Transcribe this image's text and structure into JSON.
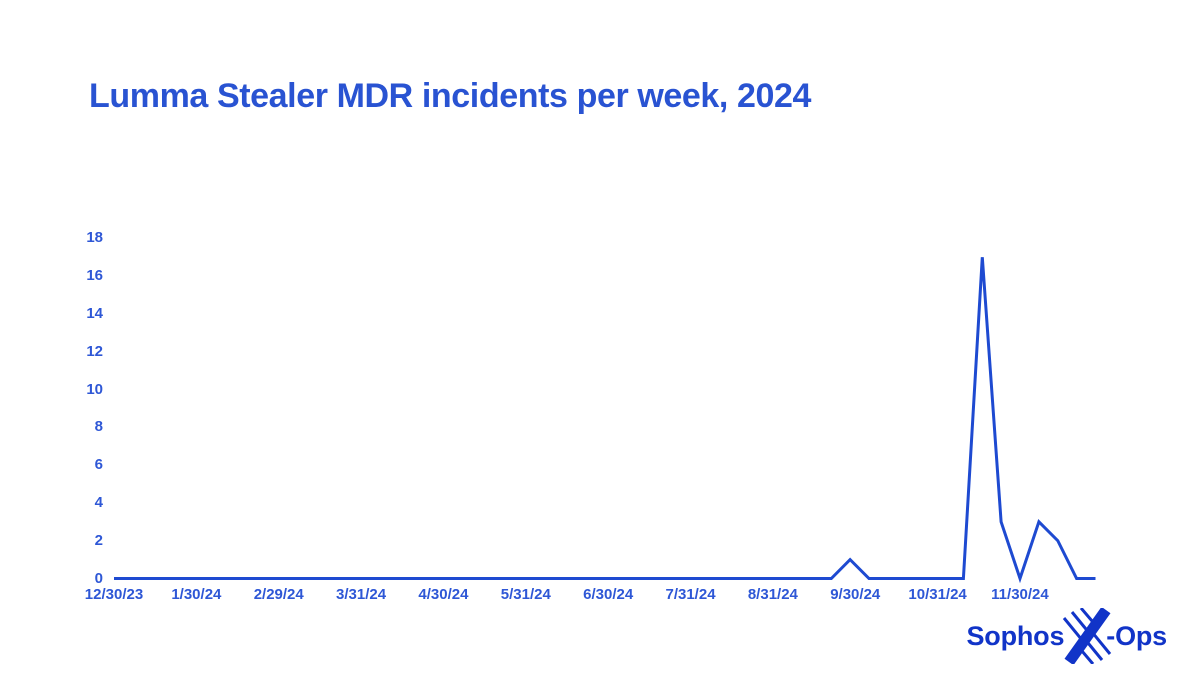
{
  "page": {
    "background": "#ffffff"
  },
  "chart": {
    "title": "Lumma Stealer MDR incidents per week, 2024"
  },
  "logo": {
    "left_text": "Sophos",
    "right_text": "-Ops",
    "icon": "sophos-x-mark"
  },
  "colors": {
    "title": "#2953d2",
    "axis_text": "#2e57d6",
    "line": "#1e4ad1",
    "logo": "#1134c8",
    "background": "#ffffff"
  },
  "chart_data": {
    "type": "line",
    "title": "Lumma Stealer MDR incidents per week, 2024",
    "xlabel": "",
    "ylabel": "",
    "ylim": [
      0,
      18
    ],
    "y_ticks": [
      0,
      2,
      4,
      6,
      8,
      10,
      12,
      14,
      16,
      18
    ],
    "x_tick_labels": [
      "12/30/23",
      "1/30/24",
      "2/29/24",
      "3/31/24",
      "4/30/24",
      "5/31/24",
      "6/30/24",
      "7/31/24",
      "8/31/24",
      "9/30/24",
      "10/31/24",
      "11/30/24"
    ],
    "grid": false,
    "legend_position": "none",
    "series": [
      {
        "name": "MDR incidents per week",
        "x": [
          "12/30/23",
          "1/6/24",
          "1/13/24",
          "1/20/24",
          "1/27/24",
          "2/3/24",
          "2/10/24",
          "2/17/24",
          "2/24/24",
          "3/2/24",
          "3/9/24",
          "3/16/24",
          "3/23/24",
          "3/30/24",
          "4/6/24",
          "4/13/24",
          "4/20/24",
          "4/27/24",
          "5/4/24",
          "5/11/24",
          "5/18/24",
          "5/25/24",
          "6/1/24",
          "6/8/24",
          "6/15/24",
          "6/22/24",
          "6/29/24",
          "7/6/24",
          "7/13/24",
          "7/20/24",
          "7/27/24",
          "8/3/24",
          "8/10/24",
          "8/17/24",
          "8/24/24",
          "8/31/24",
          "9/7/24",
          "9/14/24",
          "9/21/24",
          "9/28/24",
          "10/5/24",
          "10/12/24",
          "10/19/24",
          "10/26/24",
          "11/2/24",
          "11/9/24",
          "11/16/24",
          "11/23/24",
          "11/30/24",
          "12/7/24",
          "12/14/24",
          "12/21/24",
          "12/28/24"
        ],
        "values": [
          0,
          0,
          0,
          0,
          0,
          0,
          0,
          0,
          0,
          0,
          0,
          0,
          0,
          0,
          0,
          0,
          0,
          0,
          0,
          0,
          0,
          0,
          0,
          0,
          0,
          0,
          0,
          0,
          0,
          0,
          0,
          0,
          0,
          0,
          0,
          0,
          0,
          0,
          0,
          1,
          0,
          0,
          0,
          0,
          0,
          0,
          17,
          3,
          0,
          3,
          2,
          0,
          0
        ]
      }
    ]
  }
}
